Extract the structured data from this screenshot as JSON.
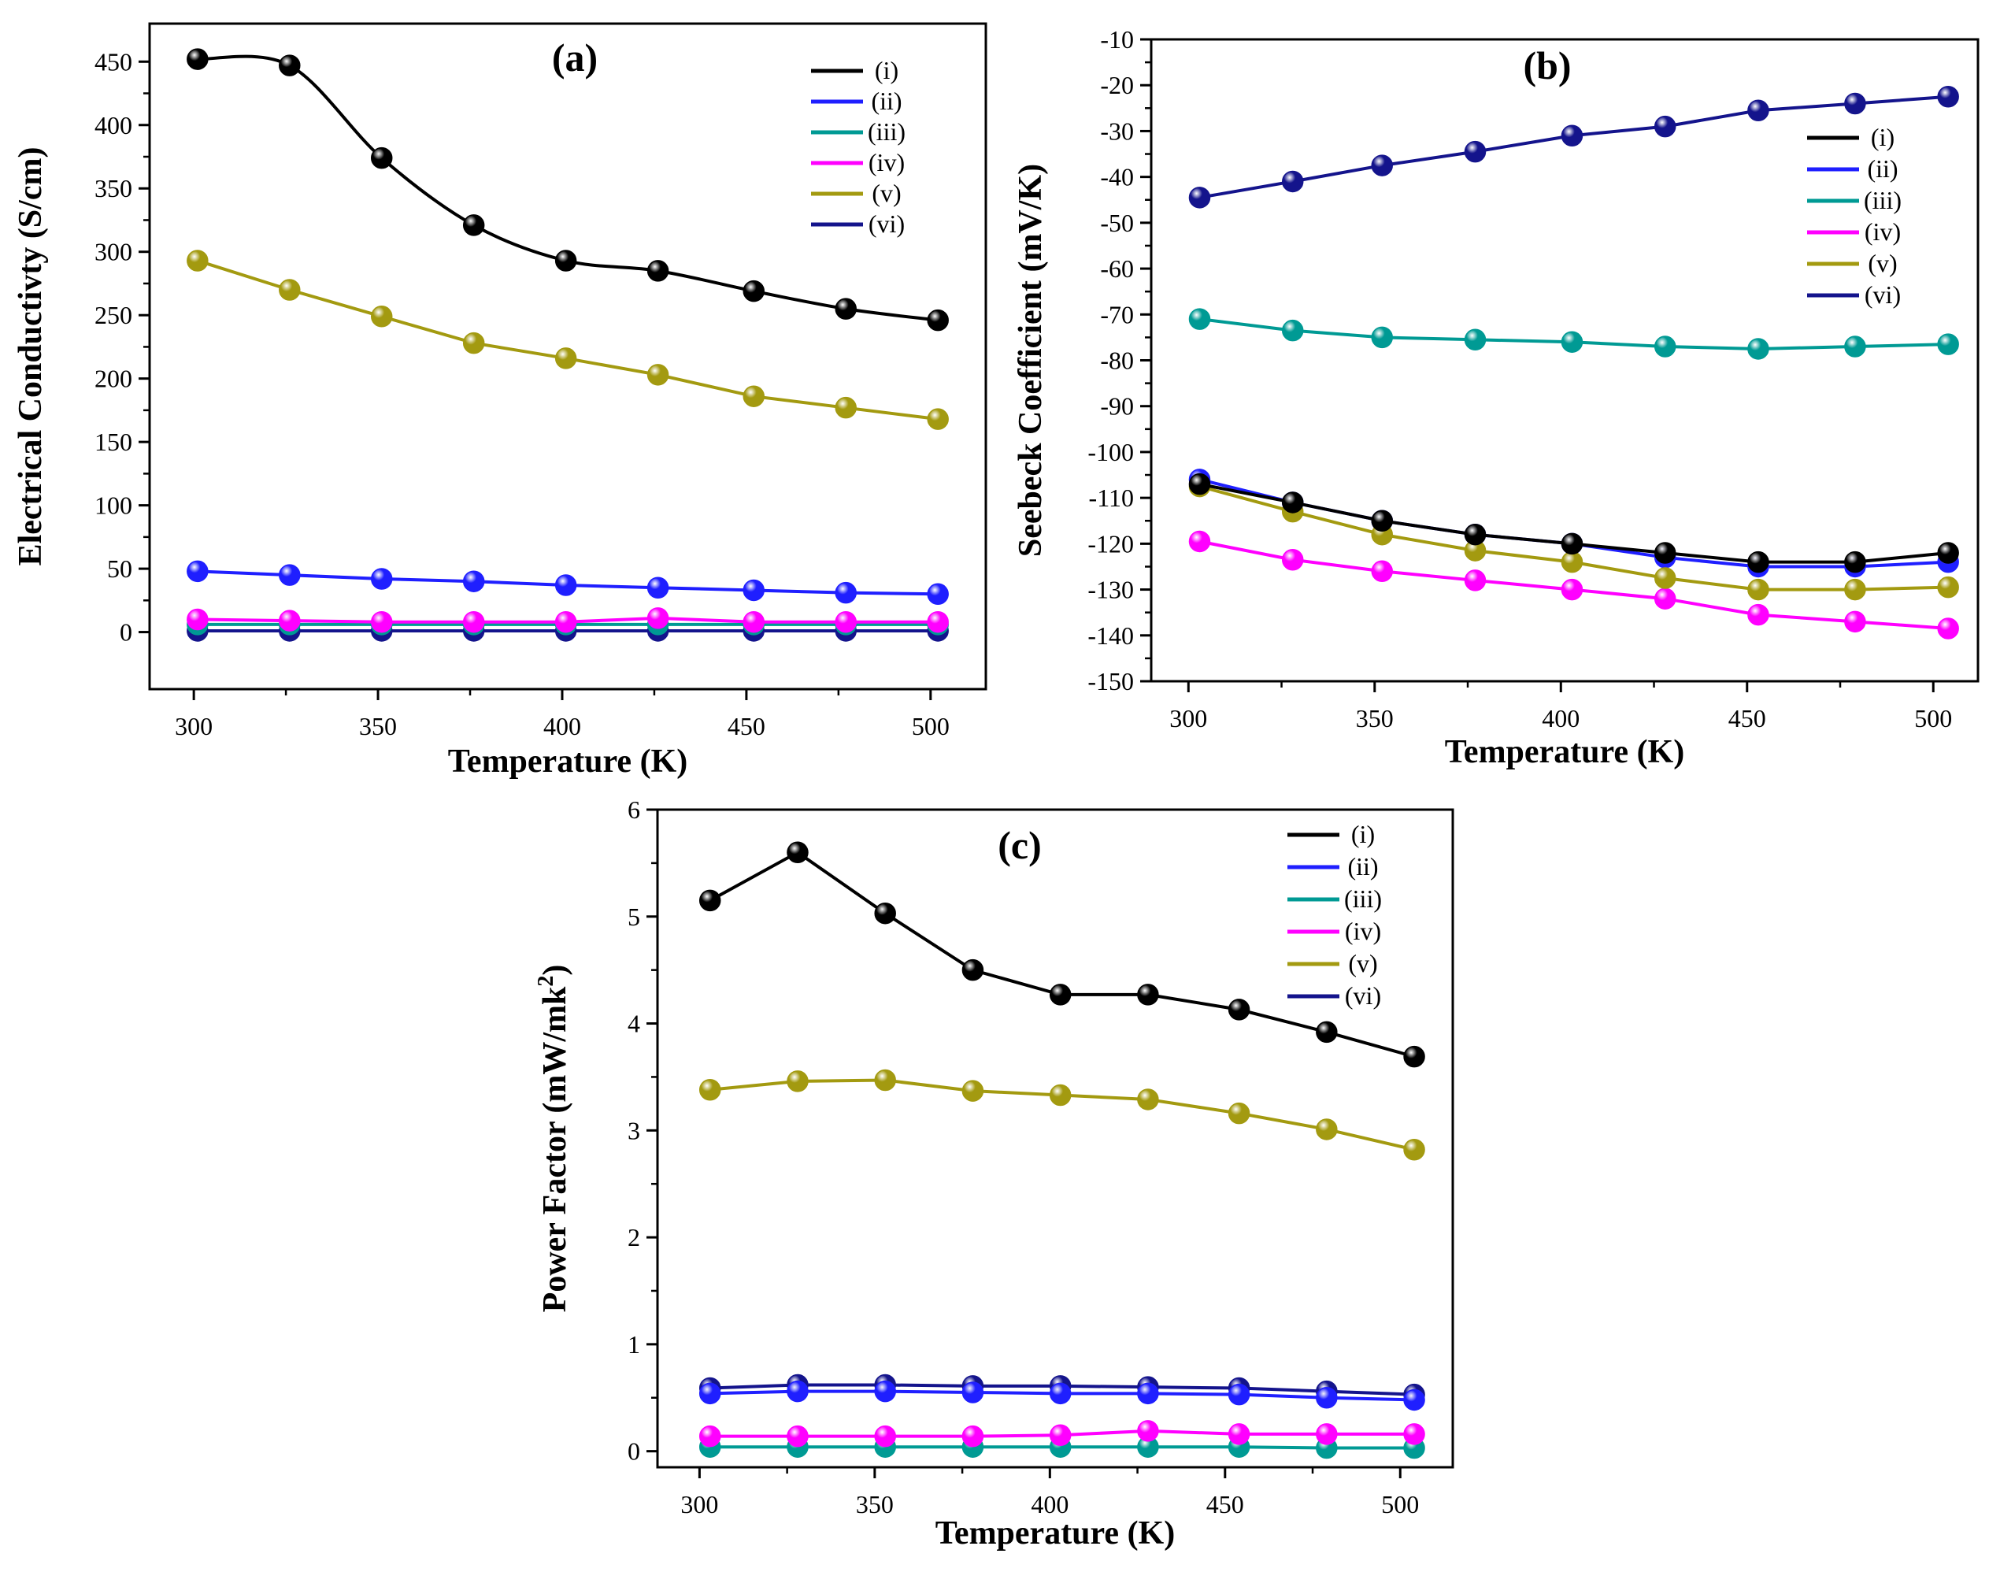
{
  "chart_data": [
    {
      "type": "line",
      "panel_label": "(a)",
      "title": "",
      "xlabel": "Temperature (K)",
      "ylabel": "Electrical Conductivty (S/cm)",
      "ylabel_sup": "",
      "ylabel_tail": "",
      "xlim": [
        288,
        515
      ],
      "ylim": [
        -45,
        480
      ],
      "xticks": [
        "300",
        "350",
        "400",
        "450",
        "500"
      ],
      "xtick_values": [
        300,
        350,
        400,
        450,
        500
      ],
      "yticks": [
        "0",
        "50",
        "100",
        "150",
        "200",
        "250",
        "300",
        "350",
        "400",
        "450"
      ],
      "ytick_values": [
        0,
        50,
        100,
        150,
        200,
        250,
        300,
        350,
        400,
        450
      ],
      "legend_position": "top-right",
      "x": [
        301,
        326,
        351,
        376,
        401,
        426,
        452,
        477,
        502
      ],
      "series": [
        {
          "name": "(i)",
          "color": "#000000",
          "values": [
            452,
            447,
            374,
            321,
            293,
            285,
            269,
            255,
            246
          ]
        },
        {
          "name": "(ii)",
          "color": "#1f1fff",
          "values": [
            48,
            45,
            42,
            40,
            37,
            35,
            33,
            31,
            30
          ]
        },
        {
          "name": "(iii)",
          "color": "#009a94",
          "values": [
            6,
            6,
            6,
            6,
            6,
            6,
            6,
            6,
            6
          ]
        },
        {
          "name": "(iv)",
          "color": "#ff00ff",
          "values": [
            10,
            9,
            8,
            8,
            8,
            11,
            8,
            8,
            8
          ]
        },
        {
          "name": "(v)",
          "color": "#a39a10",
          "values": [
            293,
            270,
            249,
            228,
            216,
            203,
            186,
            177,
            168
          ]
        },
        {
          "name": "(vi)",
          "color": "#14148c",
          "values": [
            1,
            1,
            1,
            1,
            1,
            1,
            1,
            1,
            1
          ]
        }
      ]
    },
    {
      "type": "line",
      "panel_label": "(b)",
      "title": "",
      "xlabel": "Temperature (K)",
      "ylabel": "Seebeck Coefficient (mV/K)",
      "ylabel_sup": "",
      "ylabel_tail": "",
      "xlim": [
        290,
        512
      ],
      "ylim": [
        -150,
        -10
      ],
      "xticks": [
        "300",
        "350",
        "400",
        "450",
        "500"
      ],
      "xtick_values": [
        300,
        350,
        400,
        450,
        500
      ],
      "yticks": [
        "-150",
        "-140",
        "-130",
        "-120",
        "-110",
        "-100",
        "-90",
        "-80",
        "-70",
        "-60",
        "-50",
        "-40",
        "-30",
        "-20",
        "-10"
      ],
      "ytick_values": [
        -150,
        -140,
        -130,
        -120,
        -110,
        -100,
        -90,
        -80,
        -70,
        -60,
        -50,
        -40,
        -30,
        -20,
        -10
      ],
      "legend_position": "top-right",
      "x": [
        303,
        328,
        352,
        377,
        403,
        428,
        453,
        479,
        504
      ],
      "series": [
        {
          "name": "(i)",
          "color": "#000000",
          "values": [
            -107,
            -111,
            -115,
            -118,
            -120,
            -122,
            -124,
            -124,
            -122
          ]
        },
        {
          "name": "(ii)",
          "color": "#1f1fff",
          "values": [
            -106,
            -111,
            -115,
            -118,
            -120,
            -123,
            -125,
            -125,
            -124
          ]
        },
        {
          "name": "(iii)",
          "color": "#009a94",
          "values": [
            -71,
            -73.5,
            -75,
            -75.5,
            -76,
            -77,
            -77.5,
            -77,
            -76.5
          ]
        },
        {
          "name": "(iv)",
          "color": "#ff00ff",
          "values": [
            -119.5,
            -123.5,
            -126,
            -128,
            -130,
            -132,
            -135.5,
            -137,
            -138.5
          ]
        },
        {
          "name": "(v)",
          "color": "#a39a10",
          "values": [
            -107.5,
            -113,
            -118,
            -121.5,
            -124,
            -127.5,
            -130,
            -130,
            -129.5
          ]
        },
        {
          "name": "(vi)",
          "color": "#14148c",
          "values": [
            -44.5,
            -41,
            -37.5,
            -34.5,
            -31,
            -29,
            -25.5,
            -24,
            -22.5
          ]
        }
      ]
    },
    {
      "type": "line",
      "panel_label": "(c)",
      "title": "",
      "xlabel": "Temperature (K)",
      "ylabel": "Power Factor (mW/mk",
      "ylabel_sup": "2",
      "ylabel_tail": ")",
      "xlim": [
        288,
        515
      ],
      "ylim": [
        -0.15,
        6
      ],
      "xticks": [
        "300",
        "350",
        "400",
        "450",
        "500"
      ],
      "xtick_values": [
        300,
        350,
        400,
        450,
        500
      ],
      "yticks": [
        "0",
        "1",
        "2",
        "3",
        "4",
        "5",
        "6"
      ],
      "ytick_values": [
        0,
        1,
        2,
        3,
        4,
        5,
        6
      ],
      "legend_position": "top-right",
      "x": [
        303,
        328,
        353,
        378,
        403,
        428,
        454,
        479,
        504
      ],
      "series": [
        {
          "name": "(i)",
          "color": "#000000",
          "values": [
            5.15,
            5.6,
            5.03,
            4.5,
            4.27,
            4.27,
            4.13,
            3.92,
            3.69
          ]
        },
        {
          "name": "(ii)",
          "color": "#1f1fff",
          "values": [
            0.54,
            0.56,
            0.56,
            0.55,
            0.54,
            0.54,
            0.53,
            0.5,
            0.48
          ]
        },
        {
          "name": "(iii)",
          "color": "#009a94",
          "values": [
            0.04,
            0.04,
            0.04,
            0.04,
            0.04,
            0.04,
            0.04,
            0.03,
            0.03
          ]
        },
        {
          "name": "(iv)",
          "color": "#ff00ff",
          "values": [
            0.14,
            0.14,
            0.14,
            0.14,
            0.15,
            0.19,
            0.16,
            0.16,
            0.16
          ]
        },
        {
          "name": "(v)",
          "color": "#a39a10",
          "values": [
            3.38,
            3.46,
            3.47,
            3.37,
            3.33,
            3.29,
            3.16,
            3.01,
            2.82
          ]
        },
        {
          "name": "(vi)",
          "color": "#14148c",
          "values": [
            0.59,
            0.62,
            0.62,
            0.61,
            0.61,
            0.6,
            0.59,
            0.56,
            0.53
          ]
        }
      ]
    }
  ]
}
